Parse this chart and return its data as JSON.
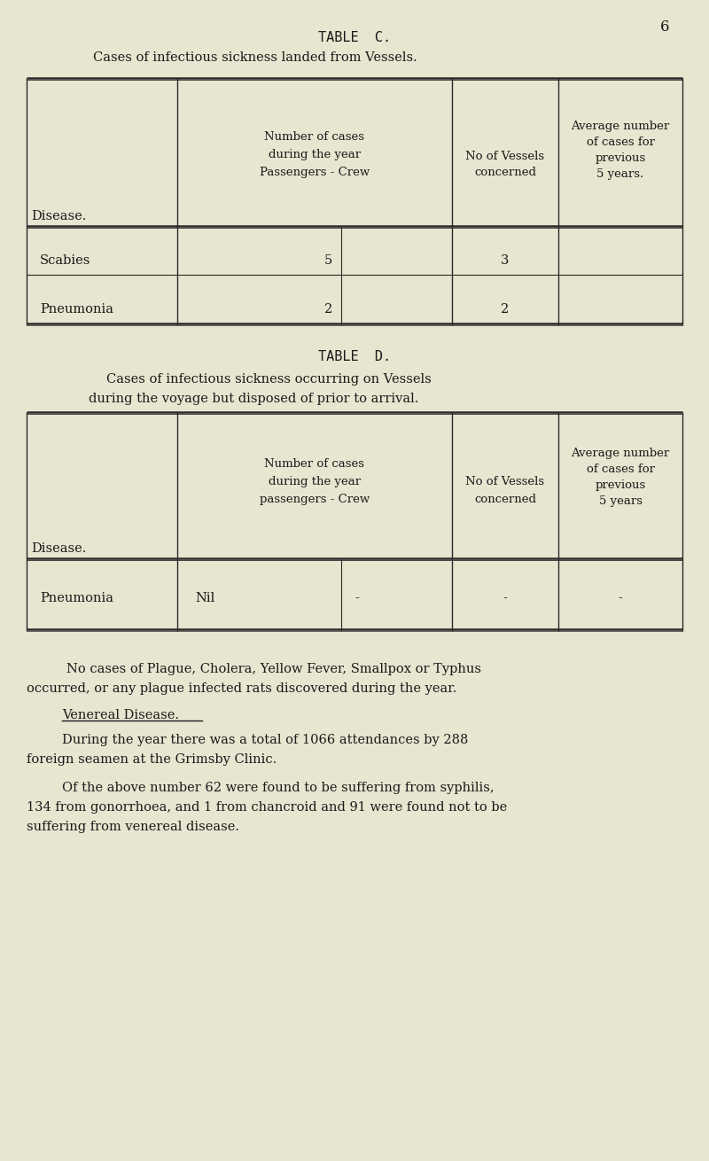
{
  "bg_color": "#e8e5d0",
  "text_color": "#1a1a1a",
  "page_number": "6",
  "table_c_title": "TABLE  C.",
  "table_c_subtitle": "Cases of infectious sickness landed from Vessels.",
  "table_c_col1_header": "Disease.",
  "table_c_col2_h1": "Number of cases",
  "table_c_col2_h2": "during the year",
  "table_c_col2_h3": "Passengers - Crew",
  "table_c_col3_h1": "No of Vessels",
  "table_c_col3_h2": "concerned",
  "table_c_col4_h1": "Average number",
  "table_c_col4_h2": "of cases for",
  "table_c_col4_h3": "previous",
  "table_c_col4_h4": "5 years.",
  "table_c_r1": [
    "Scabies",
    "",
    "5",
    "3",
    ""
  ],
  "table_c_r2": [
    "Pneumonia",
    "",
    "2",
    "2",
    ""
  ],
  "table_d_title": "TABLE  D.",
  "table_d_sub1": "Cases of infectious sickness occurring on Vessels",
  "table_d_sub2": "during the voyage but disposed of prior to arrival.",
  "table_d_col1_header": "Disease.",
  "table_d_col2_h1": "Number of cases",
  "table_d_col2_h2": "during the year",
  "table_d_col2_h3": "passengers - Crew",
  "table_d_col3_h1": "No of Vessels",
  "table_d_col3_h2": "concerned",
  "table_d_col4_h1": "Average number",
  "table_d_col4_h2": "of cases for",
  "table_d_col4_h3": "previous",
  "table_d_col4_h4": "5 years",
  "table_d_r1": [
    "Pneumonia",
    "Nil",
    "-",
    "-",
    "-"
  ],
  "plague_line1": "No cases of Plague, Cholera, Yellow Fever, Smallpox or Typhus",
  "plague_line2": "occurred, or any plague infected rats discovered during the year.",
  "venereal_heading": "Venereal Disease.",
  "vd_p1l1": "During the year there was a total of 1066 attendances by 288",
  "vd_p1l2": "foreign seamen at the Grimsby Clinic.",
  "vd_p2l1": "Of the above number 62 were found to be suffering from syphilis,",
  "vd_p2l2": "134 from gonorrhoea, and 1 from chancroid and 91 were found not to be",
  "vd_p2l3": "suffering from venereal disease."
}
